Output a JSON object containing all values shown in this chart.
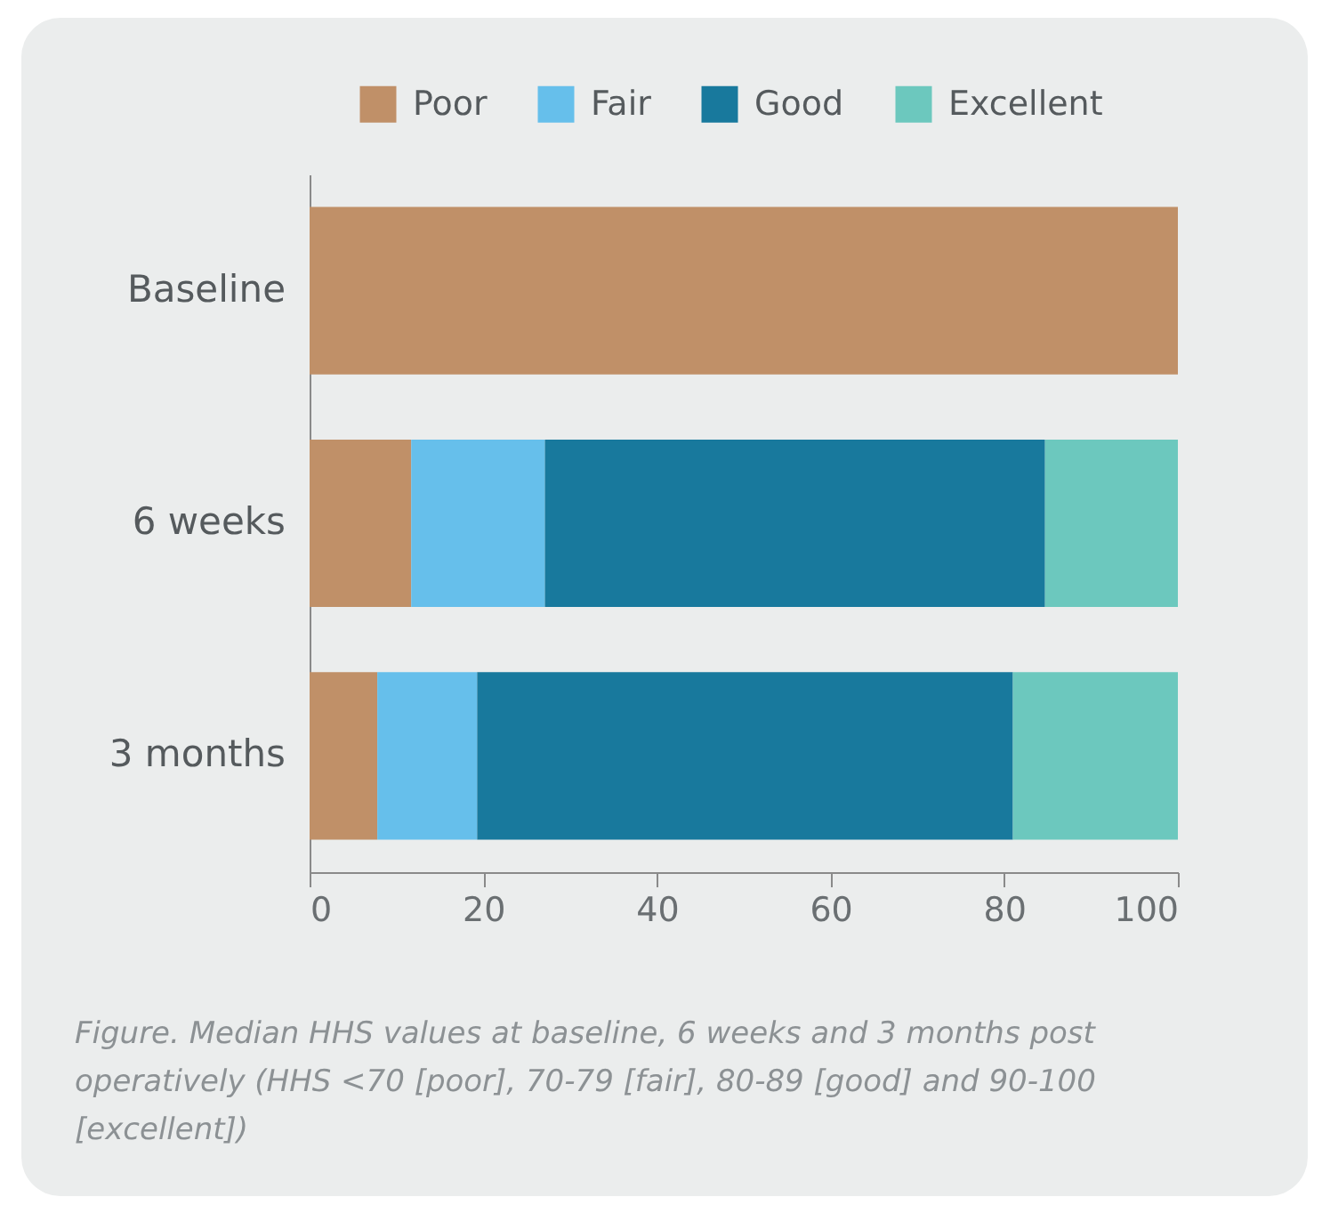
{
  "chart_data": {
    "type": "bar",
    "orientation": "horizontal",
    "stacked": true,
    "categories": [
      "Baseline",
      "6 weeks",
      "3 months"
    ],
    "series": [
      {
        "name": "Poor",
        "color": "#c09068",
        "values": [
          100,
          11.7,
          7.8
        ]
      },
      {
        "name": "Fair",
        "color": "#66bfeb",
        "values": [
          0,
          15.4,
          11.5
        ]
      },
      {
        "name": "Good",
        "color": "#18799d",
        "values": [
          0,
          57.6,
          61.7
        ]
      },
      {
        "name": "Excellent",
        "color": "#6cc8be",
        "values": [
          0,
          15.3,
          19.0
        ]
      }
    ],
    "xlim": [
      0,
      100
    ],
    "xticks": [
      0,
      20,
      40,
      60,
      80,
      100
    ],
    "grid": false,
    "legend": "top right",
    "annotations": [
      "Figure. Median HHS values at baseline, 6 weeks and 3 months post operatively (HHS <70 [poor], 70-79 [fair], 80-89 [good] and 90-100 [excellent])"
    ]
  }
}
